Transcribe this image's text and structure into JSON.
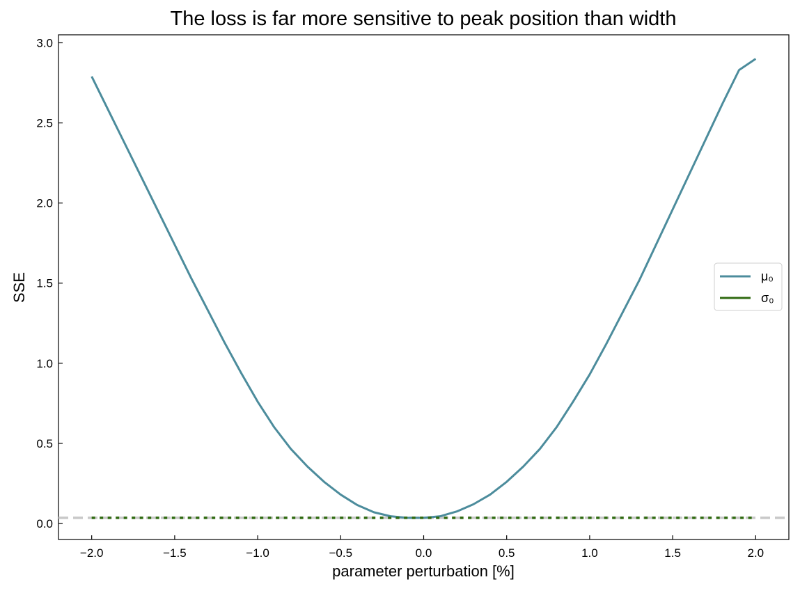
{
  "chart_data": {
    "type": "line",
    "title": "The loss is far more sensitive to peak position than width",
    "xlabel": "parameter perturbation [%]",
    "ylabel": "SSE",
    "xlim": [
      -2.2,
      2.2
    ],
    "ylim": [
      -0.1,
      3.05
    ],
    "x_ticks": [
      -2.0,
      -1.5,
      -1.0,
      -0.5,
      0.0,
      0.5,
      1.0,
      1.5,
      2.0
    ],
    "x_tick_labels": [
      "−2.0",
      "−1.5",
      "−1.0",
      "−0.5",
      "0.0",
      "0.5",
      "1.0",
      "1.5",
      "2.0"
    ],
    "y_ticks": [
      0.0,
      0.5,
      1.0,
      1.5,
      2.0,
      2.5,
      3.0
    ],
    "y_tick_labels": [
      "0.0",
      "0.5",
      "1.0",
      "1.5",
      "2.0",
      "2.5",
      "3.0"
    ],
    "legend_position": "center-right",
    "grid": false,
    "reference_line": {
      "y": 0.035,
      "style": "dashed",
      "color": "#c8c8c8"
    },
    "series": [
      {
        "name": "μ₀",
        "color": "#4c8c9c",
        "style": "solid",
        "x": [
          -2.0,
          -1.9,
          -1.8,
          -1.7,
          -1.6,
          -1.5,
          -1.4,
          -1.3,
          -1.2,
          -1.1,
          -1.0,
          -0.9,
          -0.8,
          -0.7,
          -0.6,
          -0.5,
          -0.4,
          -0.3,
          -0.2,
          -0.1,
          0.0,
          0.1,
          0.2,
          0.3,
          0.4,
          0.5,
          0.6,
          0.7,
          0.8,
          0.9,
          1.0,
          1.1,
          1.2,
          1.3,
          1.4,
          1.5,
          1.6,
          1.7,
          1.8,
          1.9,
          2.0
        ],
        "y": [
          2.79,
          2.58,
          2.37,
          2.16,
          1.95,
          1.74,
          1.53,
          1.33,
          1.13,
          0.94,
          0.76,
          0.6,
          0.465,
          0.355,
          0.26,
          0.18,
          0.115,
          0.07,
          0.045,
          0.035,
          0.035,
          0.045,
          0.075,
          0.12,
          0.18,
          0.26,
          0.355,
          0.465,
          0.6,
          0.76,
          0.93,
          1.12,
          1.32,
          1.52,
          1.74,
          1.96,
          2.18,
          2.4,
          2.62,
          2.83,
          2.9
        ]
      },
      {
        "name": "σ₀",
        "color": "#2f6a10",
        "style": "dotted",
        "x": [
          -2.0,
          -1.9,
          -1.8,
          -1.7,
          -1.6,
          -1.5,
          -1.4,
          -1.3,
          -1.2,
          -1.1,
          -1.0,
          -0.9,
          -0.8,
          -0.7,
          -0.6,
          -0.5,
          -0.4,
          -0.3,
          -0.2,
          -0.1,
          0.0,
          0.1,
          0.2,
          0.3,
          0.4,
          0.5,
          0.6,
          0.7,
          0.8,
          0.9,
          1.0,
          1.1,
          1.2,
          1.3,
          1.4,
          1.5,
          1.6,
          1.7,
          1.8,
          1.9,
          2.0
        ],
        "y": [
          0.035,
          0.035,
          0.035,
          0.035,
          0.035,
          0.035,
          0.035,
          0.035,
          0.035,
          0.035,
          0.035,
          0.035,
          0.035,
          0.035,
          0.035,
          0.035,
          0.035,
          0.035,
          0.035,
          0.035,
          0.035,
          0.035,
          0.035,
          0.035,
          0.035,
          0.035,
          0.035,
          0.035,
          0.035,
          0.035,
          0.035,
          0.035,
          0.035,
          0.035,
          0.035,
          0.035,
          0.035,
          0.035,
          0.035,
          0.035,
          0.035
        ]
      }
    ]
  }
}
